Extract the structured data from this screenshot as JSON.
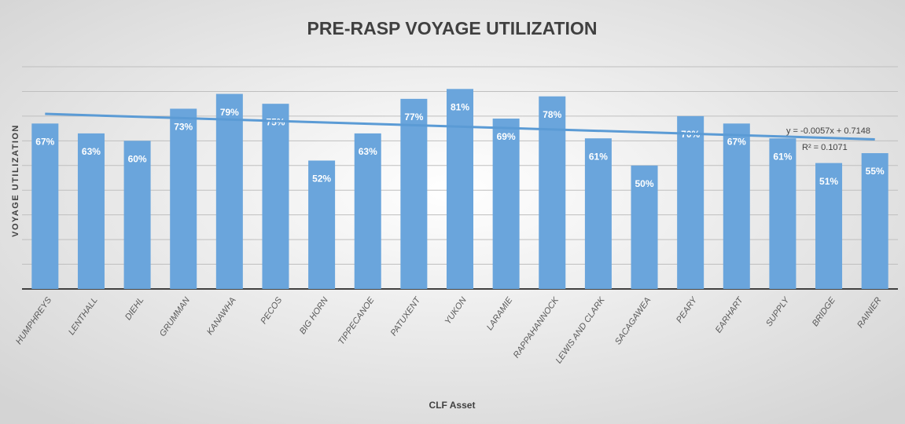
{
  "chart_data": {
    "type": "bar",
    "title": "PRE-RASP VOYAGE UTILIZATION",
    "x_label": "CLF Asset",
    "y_label": "VOYAGE UTILIZATION",
    "categories": [
      "HUMPHREYS",
      "LENTHALL",
      "DIEHL",
      "GRUMMAN",
      "KANAWHA",
      "PECOS",
      "BIG HORN",
      "TIPPECANOE",
      "PATUXENT",
      "YUKON",
      "LARAMIE",
      "RAPPAHANNOCK",
      "LEWIS AND CLARK",
      "SACAGAWEA",
      "PEARY",
      "EARHART",
      "SUPPLY",
      "BRIDGE",
      "RAINIER"
    ],
    "values": [
      67,
      63,
      60,
      73,
      79,
      75,
      52,
      63,
      77,
      81,
      69,
      78,
      61,
      50,
      70,
      67,
      61,
      51,
      55
    ],
    "value_labels": [
      "67%",
      "63%",
      "60%",
      "73%",
      "79%",
      "75%",
      "52%",
      "63%",
      "77%",
      "81%",
      "69%",
      "78%",
      "61%",
      "50%",
      "70%",
      "67%",
      "61%",
      "51%",
      "55%"
    ],
    "color": "#6aa5dc",
    "ylim": [
      0,
      90
    ],
    "yticks": [
      0,
      10,
      20,
      30,
      40,
      50,
      60,
      70,
      80,
      90
    ],
    "grid": true,
    "trendline": {
      "color": "#5b9bd5",
      "values": [
        70.9,
        60.6
      ],
      "equation": "y = -0.0057x + 0.7148",
      "r_squared": "R² = 0.1071"
    }
  }
}
